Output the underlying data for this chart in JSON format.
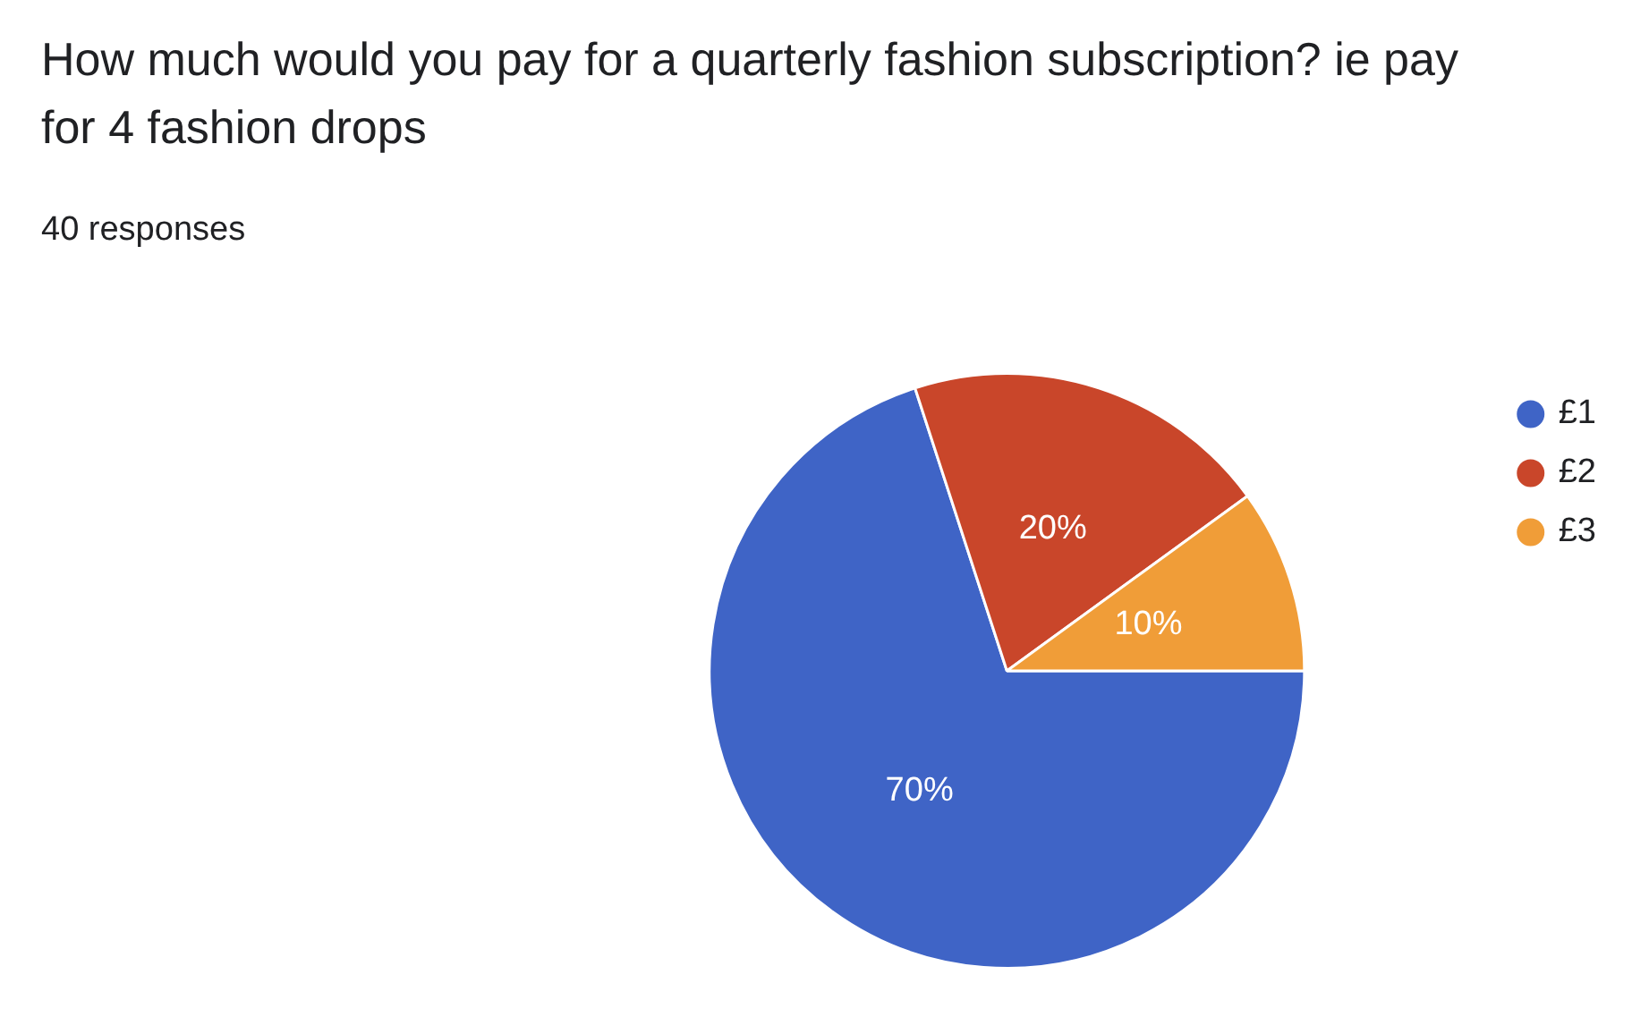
{
  "chart_data": {
    "type": "pie",
    "title": "How much would you pay for a quarterly fashion subscription? ie pay for 4 fashion drops",
    "subtitle": "40 responses",
    "categories": [
      "£1",
      "£2",
      "£3"
    ],
    "values": [
      70,
      20,
      10
    ],
    "colors": [
      "#3f64c6",
      "#c9462a",
      "#f09d38"
    ],
    "value_labels": [
      "70%",
      "20%",
      "10%"
    ],
    "legend": "right"
  }
}
